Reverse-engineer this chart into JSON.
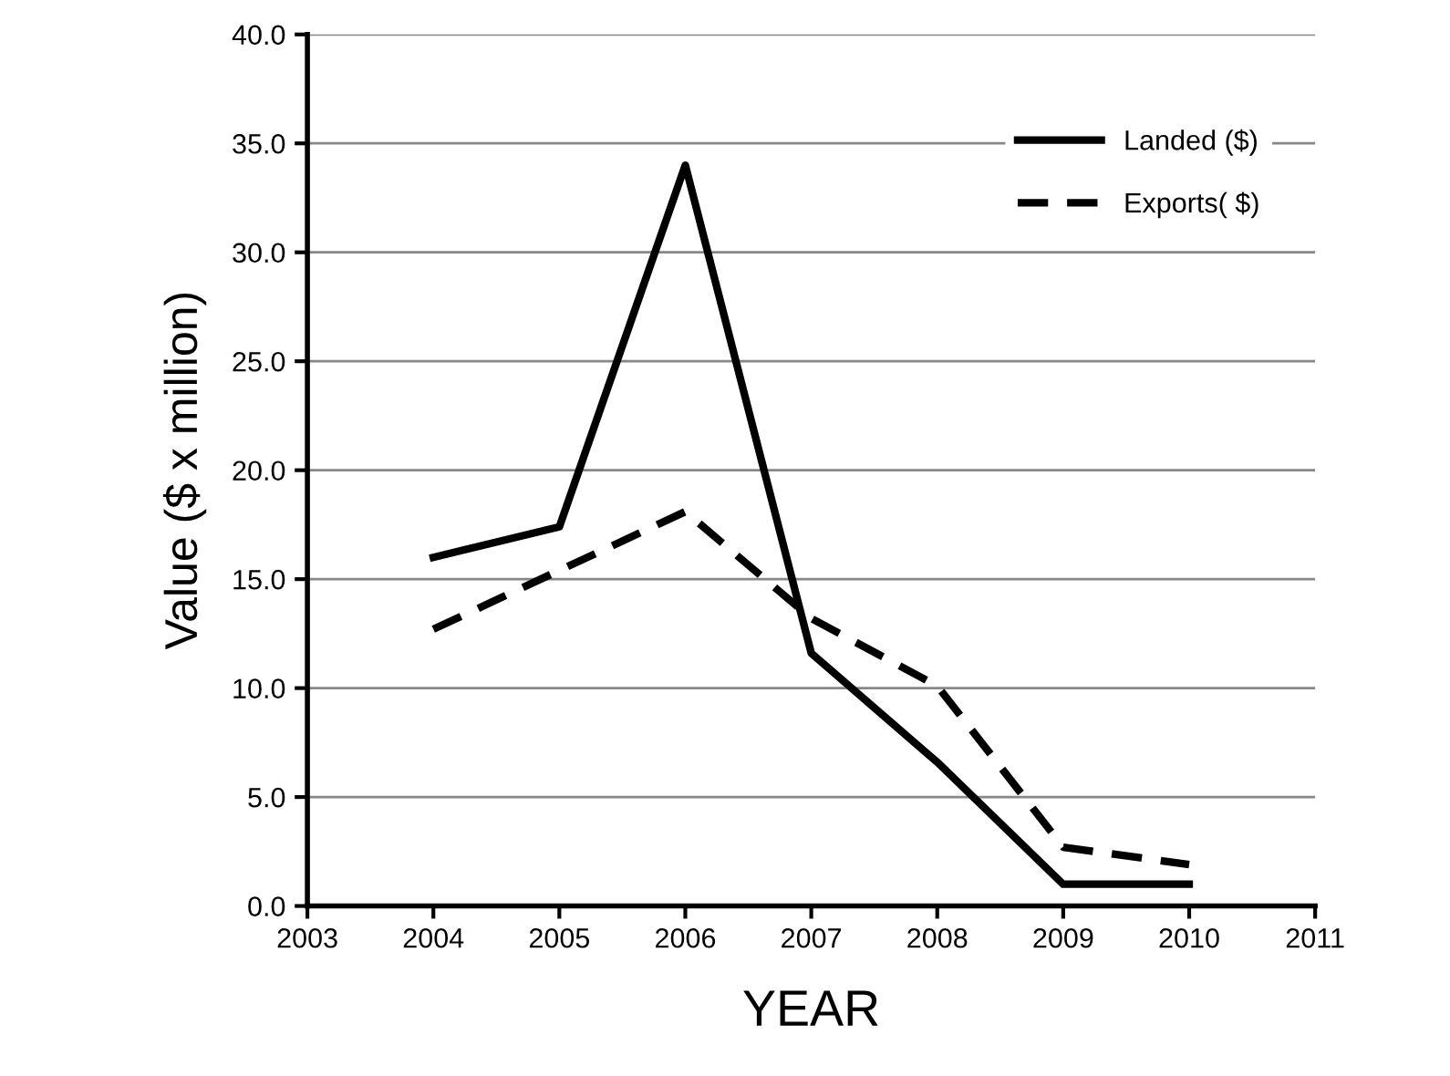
{
  "chart_data": {
    "type": "line",
    "xlabel": "YEAR",
    "ylabel": "Value ($ x million)",
    "x": [
      2004,
      2005,
      2006,
      2007,
      2008,
      2009,
      2010
    ],
    "series": [
      {
        "name": "Landed ($)",
        "color": "#000000",
        "line_style": "solid",
        "values": [
          16.0,
          17.4,
          34.0,
          11.6,
          6.6,
          1.0,
          1.0
        ]
      },
      {
        "name": "Exports( $)",
        "color": "#000000",
        "line_style": "dashed",
        "values": [
          12.7,
          15.4,
          18.1,
          13.2,
          10.1,
          2.7,
          1.9
        ]
      }
    ],
    "xlim": [
      2003,
      2011
    ],
    "xticks": [
      2003,
      2004,
      2005,
      2006,
      2007,
      2008,
      2009,
      2010,
      2011
    ],
    "ylim": [
      0,
      40
    ],
    "yticks": [
      {
        "value": 0,
        "label": "0.0"
      },
      {
        "value": 5,
        "label": "5.0"
      },
      {
        "value": 10,
        "label": "10.0"
      },
      {
        "value": 15,
        "label": "15.0"
      },
      {
        "value": 20,
        "label": "20.0"
      },
      {
        "value": 25,
        "label": "25.0"
      },
      {
        "value": 30,
        "label": "30.0"
      },
      {
        "value": 35,
        "label": "35.0"
      },
      {
        "value": 40,
        "label": "40.0"
      }
    ],
    "grid": "y",
    "legend": "top right",
    "marker": "none"
  }
}
